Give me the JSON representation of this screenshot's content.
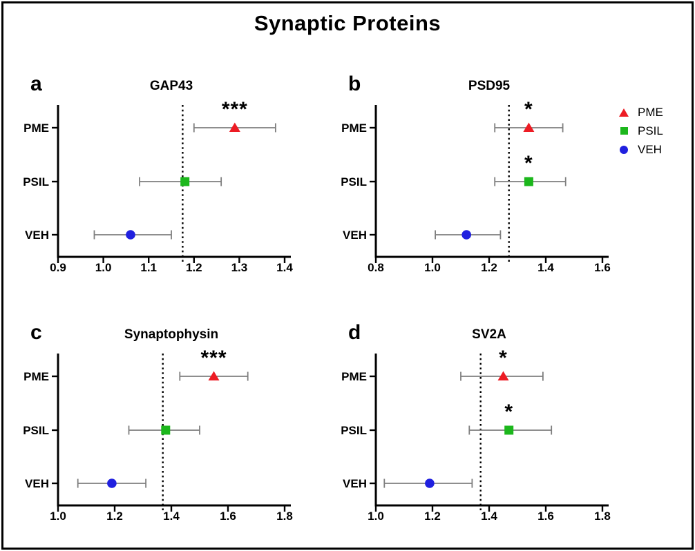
{
  "figure": {
    "title": "Synaptic Proteins",
    "colors": {
      "pme": "#ED1C24",
      "psil": "#1CB71C",
      "veh": "#2020DF",
      "error_bar": "#7E7E7E",
      "axis": "#000000",
      "reference_line": "#000000"
    },
    "legend": [
      {
        "label": "PME",
        "marker": "triangle",
        "color": "#ED1C24"
      },
      {
        "label": "PSIL",
        "marker": "square",
        "color": "#1CB71C"
      },
      {
        "label": "VEH",
        "marker": "circle",
        "color": "#2020DF"
      }
    ]
  },
  "chart_data": [
    {
      "panel": "a",
      "type": "scatter",
      "subtype": "forest-plot-horizontal",
      "title": "GAP43",
      "xlim": [
        0.9,
        1.4
      ],
      "xticks": [
        "0.9",
        "1.0",
        "1.1",
        "1.2",
        "1.3",
        "1.4"
      ],
      "refline": 1.175,
      "grid": false,
      "categories": [
        "PME",
        "PSIL",
        "VEH"
      ],
      "series": [
        {
          "name": "PME",
          "mean": 1.29,
          "ci": [
            1.2,
            1.38
          ],
          "sig": "***",
          "marker": "triangle",
          "color": "#ED1C24"
        },
        {
          "name": "PSIL",
          "mean": 1.18,
          "ci": [
            1.08,
            1.26
          ],
          "sig": "",
          "marker": "square",
          "color": "#1CB71C"
        },
        {
          "name": "VEH",
          "mean": 1.06,
          "ci": [
            0.98,
            1.15
          ],
          "sig": "",
          "marker": "circle",
          "color": "#2020DF"
        }
      ]
    },
    {
      "panel": "b",
      "type": "scatter",
      "subtype": "forest-plot-horizontal",
      "title": "PSD95",
      "xlim": [
        0.8,
        1.6
      ],
      "xticks": [
        "0.8",
        "1.0",
        "1.2",
        "1.4",
        "1.6"
      ],
      "refline": 1.27,
      "grid": false,
      "categories": [
        "PME",
        "PSIL",
        "VEH"
      ],
      "series": [
        {
          "name": "PME",
          "mean": 1.34,
          "ci": [
            1.22,
            1.46
          ],
          "sig": "*",
          "marker": "triangle",
          "color": "#ED1C24"
        },
        {
          "name": "PSIL",
          "mean": 1.34,
          "ci": [
            1.22,
            1.47
          ],
          "sig": "*",
          "marker": "square",
          "color": "#1CB71C"
        },
        {
          "name": "VEH",
          "mean": 1.12,
          "ci": [
            1.01,
            1.24
          ],
          "sig": "",
          "marker": "circle",
          "color": "#2020DF"
        }
      ]
    },
    {
      "panel": "c",
      "type": "scatter",
      "subtype": "forest-plot-horizontal",
      "title": "Synaptophysin",
      "xlim": [
        1.0,
        1.8
      ],
      "xticks": [
        "1.0",
        "1.2",
        "1.4",
        "1.6",
        "1.8"
      ],
      "refline": 1.37,
      "grid": false,
      "categories": [
        "PME",
        "PSIL",
        "VEH"
      ],
      "series": [
        {
          "name": "PME",
          "mean": 1.55,
          "ci": [
            1.43,
            1.67
          ],
          "sig": "***",
          "marker": "triangle",
          "color": "#ED1C24"
        },
        {
          "name": "PSIL",
          "mean": 1.38,
          "ci": [
            1.25,
            1.5
          ],
          "sig": "",
          "marker": "square",
          "color": "#1CB71C"
        },
        {
          "name": "VEH",
          "mean": 1.19,
          "ci": [
            1.07,
            1.31
          ],
          "sig": "",
          "marker": "circle",
          "color": "#2020DF"
        }
      ]
    },
    {
      "panel": "d",
      "type": "scatter",
      "subtype": "forest-plot-horizontal",
      "title": "SV2A",
      "xlim": [
        1.0,
        1.8
      ],
      "xticks": [
        "1.0",
        "1.2",
        "1.4",
        "1.6",
        "1.8"
      ],
      "refline": 1.37,
      "grid": false,
      "categories": [
        "PME",
        "PSIL",
        "VEH"
      ],
      "series": [
        {
          "name": "PME",
          "mean": 1.45,
          "ci": [
            1.3,
            1.59
          ],
          "sig": "*",
          "marker": "triangle",
          "color": "#ED1C24"
        },
        {
          "name": "PSIL",
          "mean": 1.47,
          "ci": [
            1.33,
            1.62
          ],
          "sig": "*",
          "marker": "square",
          "color": "#1CB71C"
        },
        {
          "name": "VEH",
          "mean": 1.19,
          "ci": [
            1.03,
            1.34
          ],
          "sig": "",
          "marker": "circle",
          "color": "#2020DF"
        }
      ]
    }
  ]
}
